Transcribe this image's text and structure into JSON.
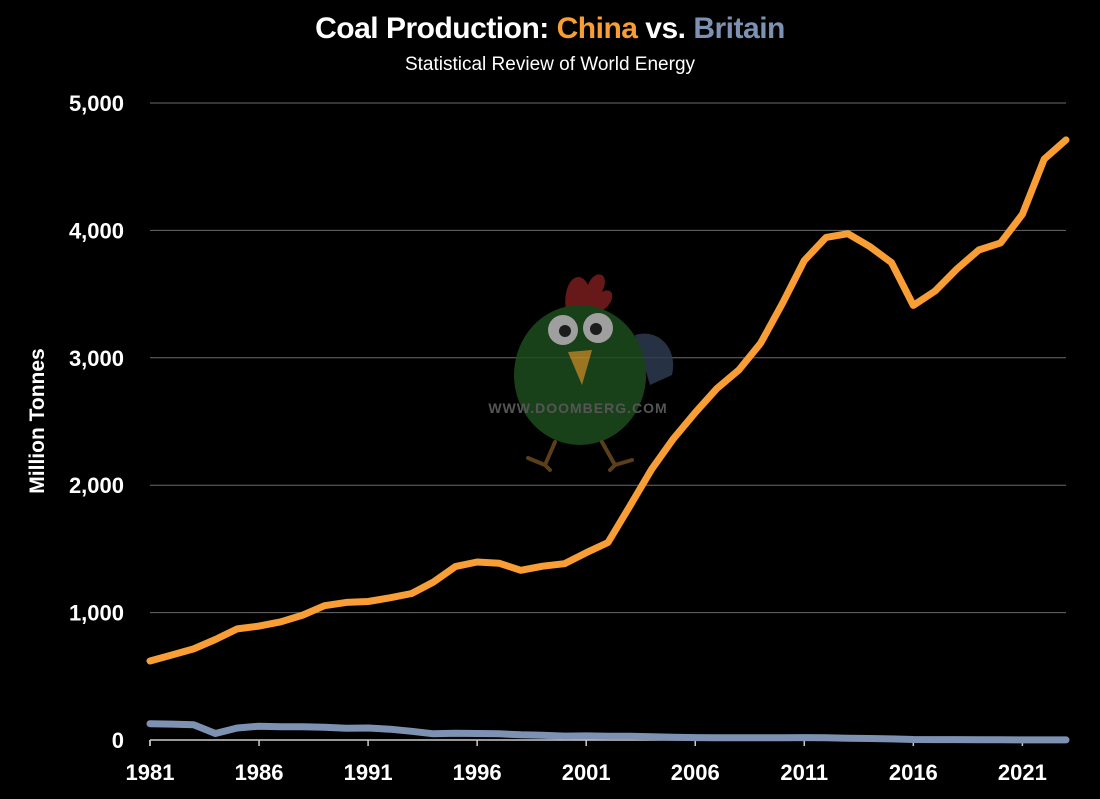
{
  "colors": {
    "china": "#F89E35",
    "britain": "#7D92B2",
    "grid": "#6a6a6a",
    "background": "#000000"
  },
  "watermark": {
    "text": "WWW.DOOMBERG.COM",
    "icon": "doomberg-chicken-logo"
  },
  "chart_data": {
    "type": "line",
    "title_prefix": "Coal Production: ",
    "title_china": "China",
    "title_vs": " vs. ",
    "title_britain": "Britain",
    "subtitle": "Statistical Review of World Energy",
    "xlabel": "",
    "ylabel": "Million Tonnes",
    "xlim": [
      1981,
      2023
    ],
    "ylim": [
      0,
      5000
    ],
    "x_ticks": [
      1981,
      1986,
      1991,
      1996,
      2001,
      2006,
      2011,
      2016,
      2021
    ],
    "y_ticks": [
      0,
      1000,
      2000,
      3000,
      4000,
      5000
    ],
    "y_tick_labels": [
      "0",
      "1,000",
      "2,000",
      "3,000",
      "4,000",
      "5,000"
    ],
    "grid": true,
    "x": [
      1981,
      1982,
      1983,
      1984,
      1985,
      1986,
      1987,
      1988,
      1989,
      1990,
      1991,
      1992,
      1993,
      1994,
      1995,
      1996,
      1997,
      1998,
      1999,
      2000,
      2001,
      2002,
      2003,
      2004,
      2005,
      2006,
      2007,
      2008,
      2009,
      2010,
      2011,
      2012,
      2013,
      2014,
      2015,
      2016,
      2017,
      2018,
      2019,
      2020,
      2021,
      2022,
      2023
    ],
    "series": [
      {
        "name": "China",
        "values": [
          620,
          667,
          715,
          789,
          872,
          894,
          928,
          980,
          1054,
          1080,
          1087,
          1116,
          1150,
          1240,
          1361,
          1397,
          1388,
          1332,
          1364,
          1384,
          1470,
          1550,
          1835,
          2125,
          2365,
          2570,
          2760,
          2905,
          3115,
          3428,
          3764,
          3945,
          3974,
          3874,
          3747,
          3411,
          3524,
          3698,
          3846,
          3902,
          4126,
          4560,
          4710
        ]
      },
      {
        "name": "Britain",
        "values": [
          128,
          125,
          119,
          51,
          94,
          108,
          104,
          104,
          100,
          93,
          94,
          85,
          68,
          49,
          53,
          51,
          49,
          41,
          37,
          31,
          32,
          30,
          29,
          26,
          21,
          19,
          17,
          18,
          18,
          18,
          19,
          17,
          13,
          12,
          9,
          4,
          3,
          3,
          2,
          2,
          1,
          1,
          1
        ]
      }
    ]
  }
}
